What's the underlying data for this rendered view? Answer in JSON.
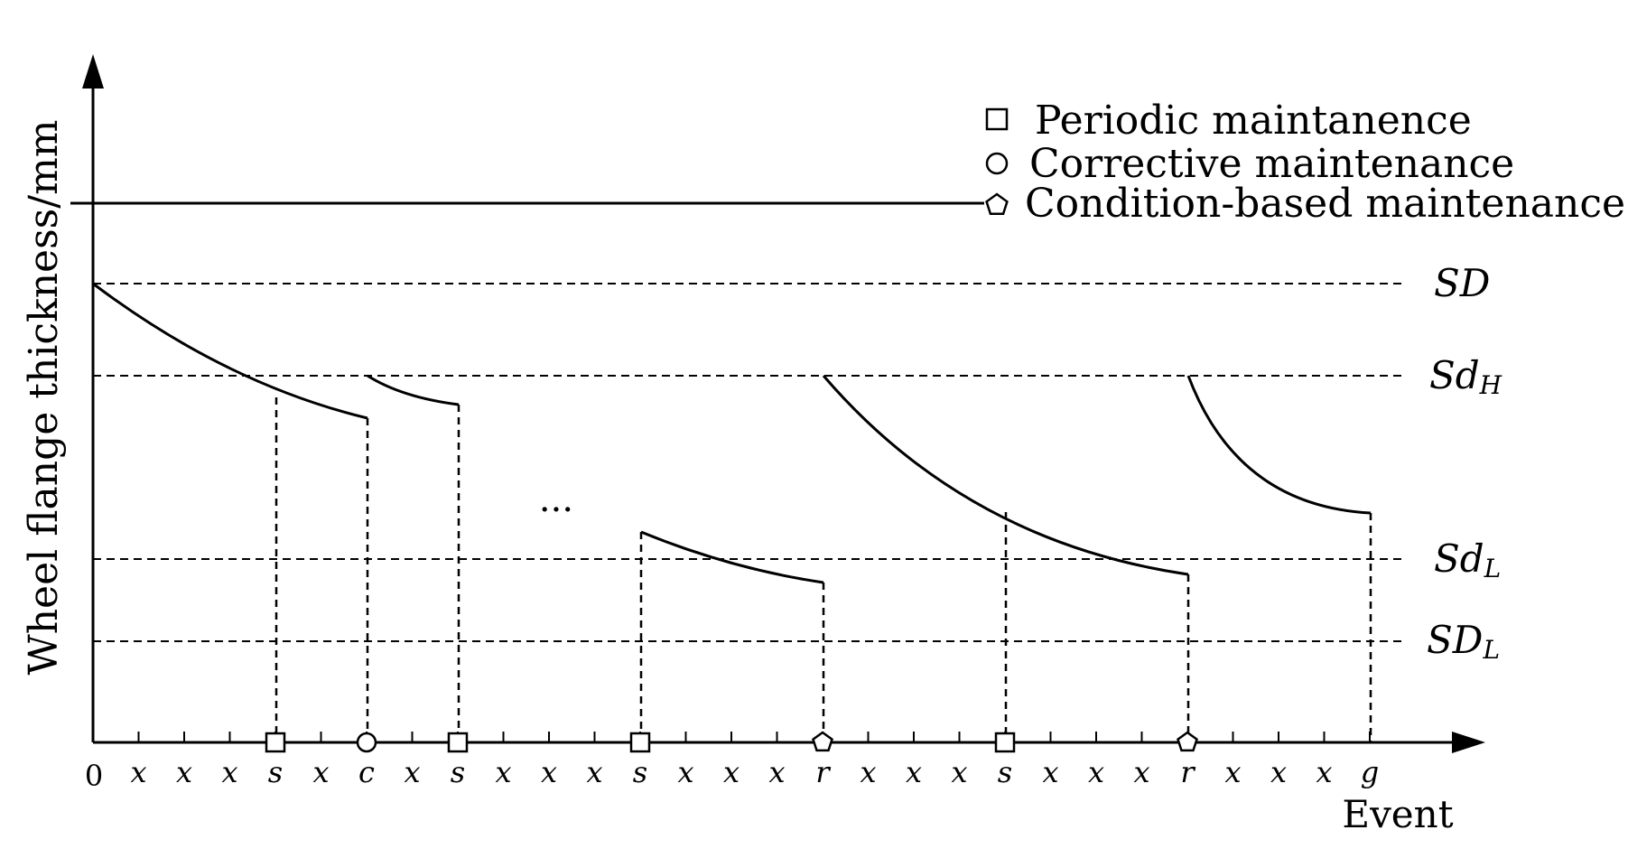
{
  "axes": {
    "y_label": "Wheel flange thickness/mm",
    "x_label": "Event",
    "origin_label": "0"
  },
  "thresholds": [
    {
      "id": "SD",
      "main": "SD",
      "sub": ""
    },
    {
      "id": "SdH",
      "main": "Sd",
      "sub": "H"
    },
    {
      "id": "SdL",
      "main": "Sd",
      "sub": "L"
    },
    {
      "id": "SDL",
      "main": "SD",
      "sub": "L"
    }
  ],
  "legend": [
    {
      "marker": "square",
      "label": "Periodic maintanence"
    },
    {
      "marker": "circle",
      "label": "Corrective maintenance"
    },
    {
      "marker": "pentagon",
      "label": "Condition-based maintenance"
    }
  ],
  "event_labels": [
    "x",
    "x",
    "x",
    "s",
    "x",
    "c",
    "x",
    "s",
    "x",
    "x",
    "x",
    "s",
    "x",
    "x",
    "x",
    "r",
    "x",
    "x",
    "x",
    "s",
    "x",
    "x",
    "x",
    "r",
    "x",
    "x",
    "x",
    "g"
  ],
  "event_markers": [
    {
      "index": 4,
      "marker": "square"
    },
    {
      "index": 6,
      "marker": "circle"
    },
    {
      "index": 8,
      "marker": "square"
    },
    {
      "index": 12,
      "marker": "square"
    },
    {
      "index": 16,
      "marker": "pentagon"
    },
    {
      "index": 20,
      "marker": "square"
    },
    {
      "index": 24,
      "marker": "pentagon"
    }
  ],
  "ellipsis": "···"
}
